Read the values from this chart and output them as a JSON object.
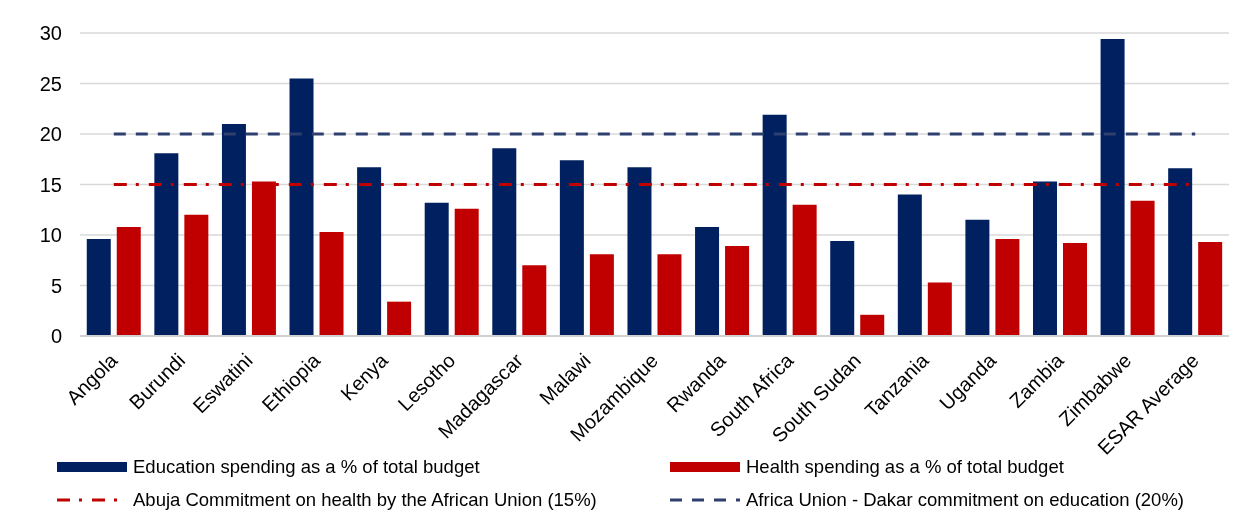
{
  "chart_data": {
    "type": "bar",
    "categories": [
      "Angola",
      "Burundi",
      "Eswatini",
      "Ethiopia",
      "Kenya",
      "Lesotho",
      "Madagascar",
      "Malawi",
      "Mozambique",
      "Rwanda",
      "South Africa",
      "South Sudan",
      "Tanzania",
      "Uganda",
      "Zambia",
      "Zimbabwe",
      "ESAR Average"
    ],
    "series": [
      {
        "name": "Education spending as a % of total budget",
        "color": "#002060",
        "values": [
          9.6,
          18.1,
          21.0,
          25.5,
          16.7,
          13.2,
          18.6,
          17.4,
          16.7,
          10.8,
          21.9,
          9.4,
          14.0,
          11.5,
          15.3,
          29.4,
          16.6
        ]
      },
      {
        "name": "Health spending as a % of total budget",
        "color": "#c00000",
        "values": [
          10.8,
          12.0,
          15.3,
          10.3,
          3.4,
          12.6,
          7.0,
          8.1,
          8.1,
          8.9,
          13.0,
          2.1,
          5.3,
          9.6,
          9.2,
          13.4,
          9.3
        ]
      }
    ],
    "ylim": [
      0,
      30
    ],
    "yticks": [
      0,
      5,
      10,
      15,
      20,
      25,
      30
    ],
    "grid": "y",
    "legend": "bottom",
    "ref_lines": [
      {
        "axis": "y",
        "value": 15,
        "label": "Abuja Commitment on health by the African Union (15%)",
        "color": "#c00000",
        "line_style": "dashdot"
      },
      {
        "axis": "y",
        "value": 20,
        "label": "Africa Union - Dakar commitment on education (20%)",
        "color": "#2f3f6f",
        "line_style": "dashed"
      }
    ]
  }
}
